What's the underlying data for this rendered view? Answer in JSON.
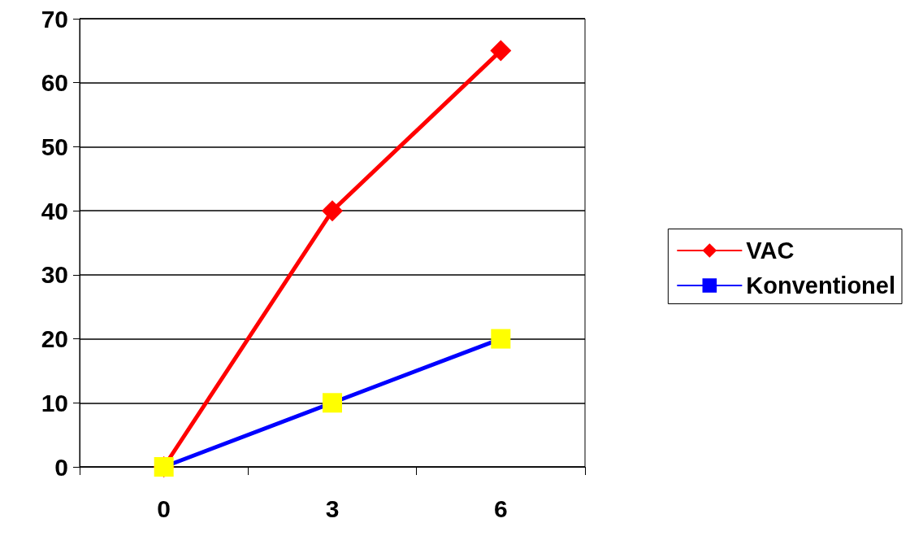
{
  "chart_data": {
    "type": "line",
    "categories": [
      "0",
      "3",
      "6"
    ],
    "series": [
      {
        "name": "VAC",
        "color": "#ff0000",
        "marker": "diamond",
        "values": [
          0,
          40,
          65
        ]
      },
      {
        "name": "Konventionel",
        "color": "#0000ff",
        "marker": "square",
        "colors": [
          "#ffff00",
          "#ffff00",
          "#ffff00"
        ],
        "values": [
          0,
          10,
          20
        ]
      }
    ],
    "ylim": [
      0,
      70
    ],
    "yticks": [
      0,
      10,
      20,
      30,
      40,
      50,
      60,
      70
    ],
    "grid": "y",
    "legend": "right"
  }
}
